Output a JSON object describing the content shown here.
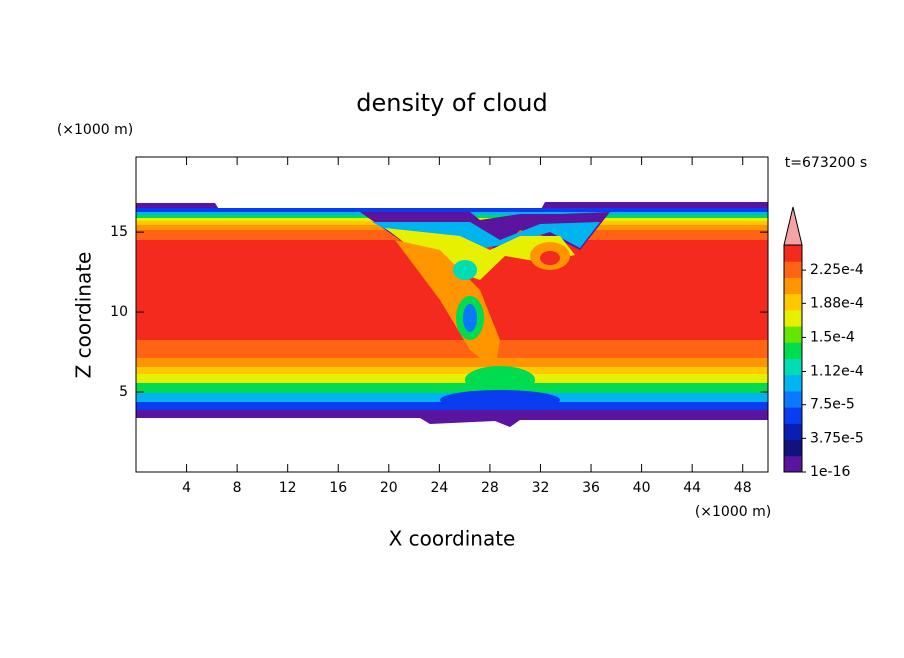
{
  "chart_data": {
    "type": "contour",
    "title": "density of cloud",
    "x_label": "X coordinate",
    "y_label": "Z coordinate",
    "x_unit": "(×1000 m)",
    "y_unit": "(×1000 m)",
    "annotation": "t=673200 s",
    "xlim": [
      0,
      50
    ],
    "ylim": [
      0,
      19.7
    ],
    "xticks": [
      4,
      8,
      12,
      16,
      20,
      24,
      28,
      32,
      36,
      40,
      44,
      48
    ],
    "yticks": [
      5,
      10,
      15
    ],
    "colorbar": {
      "clim": [
        0,
        0.000253
      ],
      "extend": "max",
      "over_color": "#f4a4a4",
      "colors": [
        "#5a14a0",
        "#12127c",
        "#0a1eb4",
        "#0a3cf0",
        "#0a78ff",
        "#00b4f0",
        "#00dcb4",
        "#00dc50",
        "#64e600",
        "#e6f000",
        "#ffc800",
        "#ff9600",
        "#ff6414",
        "#f52a1e"
      ],
      "ticks": [
        {
          "value": 1e-16,
          "label": "1e-16"
        },
        {
          "value": 3.75e-05,
          "label": "3.75e-5"
        },
        {
          "value": 7.5e-05,
          "label": "7.5e-5"
        },
        {
          "value": 0.000112,
          "label": "1.12e-4"
        },
        {
          "value": 0.00015,
          "label": "1.5e-4"
        },
        {
          "value": 0.000188,
          "label": "1.88e-4"
        },
        {
          "value": 0.000225,
          "label": "2.25e-4"
        }
      ]
    }
  }
}
